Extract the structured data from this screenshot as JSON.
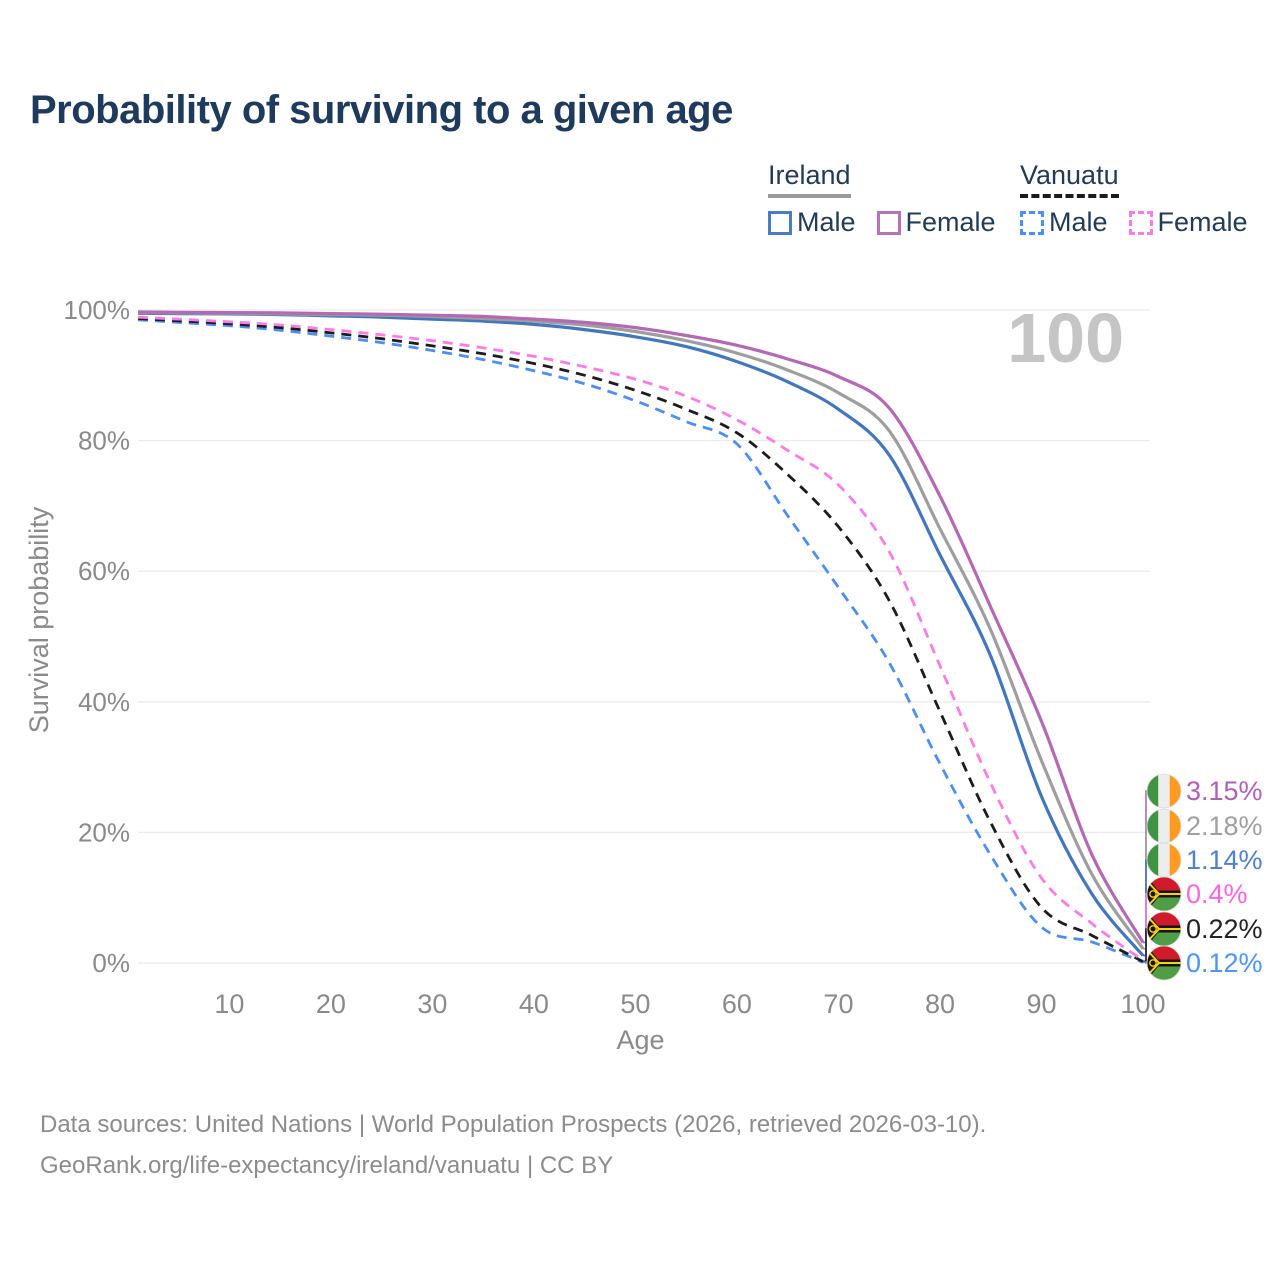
{
  "title": "Probability of surviving to a given age",
  "watermark": "100",
  "legend": {
    "groups": [
      {
        "name": "Ireland",
        "line_style": "solid",
        "underline_color": "#9a9a9a",
        "items": [
          {
            "label": "Male",
            "color": "#4a7cc4"
          },
          {
            "label": "Female",
            "color": "#b674b6"
          }
        ]
      },
      {
        "name": "Vanuatu",
        "line_style": "dashed",
        "underline_color": "#1b1b1b",
        "items": [
          {
            "label": "Male",
            "color": "#4d8ef5"
          },
          {
            "label": "Female",
            "color": "#fb7ce8"
          }
        ]
      }
    ]
  },
  "chart_data": {
    "type": "line",
    "title": "Probability of surviving to a given age",
    "xlabel": "Age",
    "ylabel": "Survival probability",
    "xlim": [
      1,
      100
    ],
    "ylim": [
      0,
      100
    ],
    "x_ticks": [
      "10",
      "20",
      "30",
      "40",
      "50",
      "60",
      "70",
      "80",
      "90",
      "100"
    ],
    "x_tick_values": [
      10,
      20,
      30,
      40,
      50,
      60,
      70,
      80,
      90,
      100
    ],
    "y_ticks": [
      "0%",
      "20%",
      "40%",
      "60%",
      "80%",
      "100%"
    ],
    "y_tick_values": [
      0,
      20,
      40,
      60,
      80,
      100
    ],
    "grid": "horizontal",
    "legend_position": "top-right",
    "hover_age": "100",
    "ages": [
      1,
      5,
      10,
      15,
      20,
      25,
      30,
      35,
      40,
      45,
      50,
      55,
      60,
      65,
      70,
      75,
      80,
      85,
      90,
      95,
      100
    ],
    "series": [
      {
        "name": "Ireland Female",
        "country": "Ireland",
        "sex": "Female",
        "line": "solid",
        "color": "#b469b4",
        "label_color": "#b05fb8",
        "flag": "ireland",
        "end_label": "3.15%",
        "values": [
          99.7,
          99.65,
          99.6,
          99.55,
          99.45,
          99.35,
          99.2,
          99.0,
          98.6,
          98.1,
          97.3,
          96.1,
          94.6,
          92.5,
          89.8,
          85.0,
          71.5,
          54.5,
          37.0,
          16.5,
          3.15
        ]
      },
      {
        "name": "Ireland Combined",
        "country": "Ireland",
        "sex": "Both",
        "line": "solid",
        "color": "#9e9e9e",
        "label_color": "#a0a0a0",
        "flag": "ireland",
        "end_label": "2.18%",
        "values": [
          99.6,
          99.55,
          99.5,
          99.4,
          99.3,
          99.2,
          99.0,
          98.7,
          98.3,
          97.7,
          96.7,
          95.3,
          93.4,
          90.8,
          87.3,
          81.5,
          66.5,
          51.0,
          31.0,
          13.5,
          2.18
        ]
      },
      {
        "name": "Ireland Male",
        "country": "Ireland",
        "sex": "Male",
        "line": "solid",
        "color": "#4276bd",
        "label_color": "#4f81cc",
        "flag": "ireland",
        "end_label": "1.14%",
        "values": [
          99.5,
          99.45,
          99.4,
          99.3,
          99.1,
          98.9,
          98.6,
          98.3,
          97.8,
          97.0,
          95.9,
          94.4,
          92.1,
          89.0,
          84.8,
          77.8,
          62.5,
          47.0,
          25.5,
          10.5,
          1.14
        ]
      },
      {
        "name": "Vanuatu Female",
        "country": "Vanuatu",
        "sex": "Female",
        "line": "dashed",
        "color": "#fb7ce8",
        "label_color": "#f966e0",
        "flag": "vanuatu",
        "end_label": "0.4%",
        "values": [
          98.9,
          98.6,
          98.2,
          97.7,
          97.0,
          96.2,
          95.3,
          94.2,
          92.9,
          91.3,
          89.4,
          86.8,
          83.2,
          78.5,
          73.2,
          63.0,
          45.5,
          27.5,
          13.0,
          6.0,
          0.4
        ]
      },
      {
        "name": "Vanuatu Combined",
        "country": "Vanuatu",
        "sex": "Both",
        "line": "dashed",
        "color": "#1c1c1c",
        "label_color": "#222222",
        "flag": "vanuatu",
        "end_label": "0.22%",
        "values": [
          98.7,
          98.35,
          97.9,
          97.3,
          96.5,
          95.6,
          94.5,
          93.3,
          91.8,
          90.0,
          87.7,
          84.8,
          81.2,
          74.8,
          66.8,
          55.5,
          38.5,
          21.5,
          8.5,
          4.2,
          0.22
        ]
      },
      {
        "name": "Vanuatu Male",
        "country": "Vanuatu",
        "sex": "Male",
        "line": "dashed",
        "color": "#4d8ef5",
        "label_color": "#4d94f7",
        "flag": "vanuatu",
        "end_label": "0.12%",
        "values": [
          98.5,
          98.1,
          97.6,
          96.9,
          96.0,
          95.0,
          93.8,
          92.4,
          90.7,
          88.7,
          86.1,
          82.9,
          79.5,
          68.5,
          57.5,
          46.0,
          30.5,
          16.5,
          5.5,
          3.2,
          0.12
        ]
      }
    ]
  },
  "flag_colors": {
    "ireland": {
      "green": "#3f9442",
      "white": "#ededed",
      "orange": "#ff9b21"
    },
    "vanuatu": {
      "red": "#cf1b2b",
      "green": "#4f9e45",
      "black": "#17130e",
      "yellow": "#fdce12"
    }
  },
  "footer": {
    "line1": "Data sources: United Nations | World Population Prospects (2026, retrieved 2026-03-10).",
    "line2": "GeoRank.org/life-expectancy/ireland/vanuatu | CC BY"
  }
}
